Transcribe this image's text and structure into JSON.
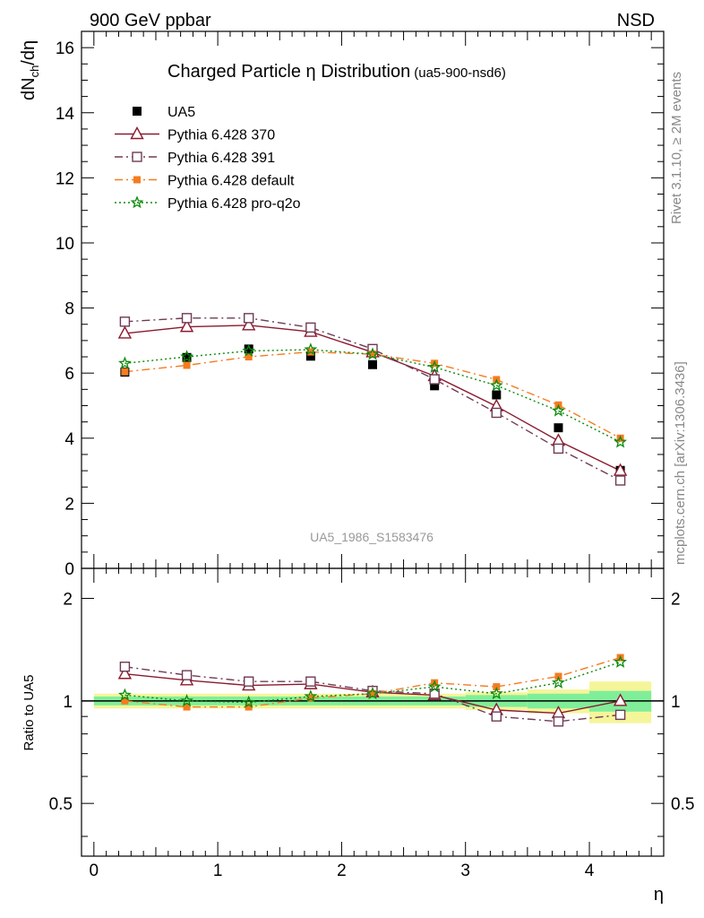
{
  "header": {
    "left": "900 GeV ppbar",
    "right": "NSD"
  },
  "side_labels": {
    "rivet": "Rivet 3.1.10, ≥ 2M events",
    "mcplots": "mcplots.cern.ch [arXiv:1306.3436]"
  },
  "watermark": "UA5_1986_S1583476",
  "colors": {
    "ua5": "#000000",
    "p370": "#8b1a2e",
    "p391": "#6e3b54",
    "pdefault": "#f47c20",
    "pq2o": "#0a8a0a",
    "band_inner": "#80ee99",
    "band_outer": "#f5f59a"
  },
  "chart_data": [
    {
      "type": "line",
      "title": "Charged Particle η Distribution",
      "title_tag": "(ua5-900-nsd6)",
      "ylabel": "dNch/dη",
      "ylabel_main": "dN",
      "ylabel_sub": "ch",
      "ylabel_tail": "/dη",
      "xlim": [
        -0.1,
        4.6
      ],
      "ylim": [
        0,
        16.5
      ],
      "yticks": [
        0,
        2,
        4,
        6,
        8,
        10,
        12,
        14,
        16
      ],
      "x": [
        0.25,
        0.75,
        1.25,
        1.75,
        2.25,
        2.75,
        3.25,
        3.75,
        4.25
      ],
      "legend_position": "top-left",
      "series": [
        {
          "key": "ua5",
          "name": "UA5",
          "marker": "square-filled",
          "line": "none",
          "values": [
            6.03,
            6.48,
            6.74,
            6.52,
            6.26,
            5.61,
            5.33,
            4.32,
            3.01
          ]
        },
        {
          "key": "p370",
          "name": "Pythia 6.428 370",
          "marker": "triangle-open",
          "line": "solid",
          "values": [
            7.22,
            7.42,
            7.47,
            7.27,
            6.64,
            5.91,
            4.98,
            3.92,
            3.0
          ]
        },
        {
          "key": "p391",
          "name": "Pythia 6.428 391",
          "marker": "square-open",
          "line": "dashdot",
          "values": [
            7.58,
            7.69,
            7.69,
            7.4,
            6.74,
            5.81,
            4.78,
            3.68,
            2.7
          ]
        },
        {
          "key": "pdefault",
          "name": "Pythia 6.428 default",
          "marker": "square-small",
          "line": "dashdot",
          "values": [
            6.04,
            6.24,
            6.5,
            6.65,
            6.58,
            6.3,
            5.8,
            5.02,
            4.0
          ]
        },
        {
          "key": "pq2o",
          "name": "Pythia 6.428 pro-q2o",
          "marker": "star",
          "line": "dotted",
          "values": [
            6.3,
            6.5,
            6.68,
            6.72,
            6.58,
            6.18,
            5.62,
            4.84,
            3.88
          ]
        }
      ]
    },
    {
      "type": "line",
      "ylabel": "Ratio to UA5",
      "xlabel": "η",
      "xlim": [
        -0.1,
        4.6
      ],
      "ylim": [
        0.35,
        2.45
      ],
      "xticks": [
        0,
        1,
        2,
        3,
        4
      ],
      "yticks": [
        0.5,
        1,
        2
      ],
      "yticks_labels": [
        "0.5",
        "1",
        "2"
      ],
      "reference_line": 1,
      "bands": {
        "edges": [
          0,
          0.5,
          1,
          1.5,
          2,
          2.5,
          3,
          3.5,
          4,
          4.5
        ],
        "inner": [
          0.03,
          0.03,
          0.03,
          0.03,
          0.03,
          0.03,
          0.04,
          0.05,
          0.07
        ],
        "outer": [
          0.05,
          0.05,
          0.05,
          0.05,
          0.05,
          0.05,
          0.06,
          0.08,
          0.14
        ]
      },
      "series": [
        {
          "key": "p370",
          "values": [
            1.2,
            1.15,
            1.11,
            1.12,
            1.06,
            1.04,
            0.94,
            0.92,
            1.0
          ]
        },
        {
          "key": "p391",
          "values": [
            1.26,
            1.19,
            1.14,
            1.14,
            1.07,
            1.05,
            0.9,
            0.87,
            0.91
          ]
        },
        {
          "key": "pdefault",
          "values": [
            1.0,
            0.96,
            0.96,
            1.02,
            1.05,
            1.13,
            1.1,
            1.18,
            1.34
          ]
        },
        {
          "key": "pq2o",
          "values": [
            1.04,
            1.0,
            0.99,
            1.03,
            1.05,
            1.1,
            1.05,
            1.13,
            1.3
          ]
        }
      ]
    }
  ]
}
